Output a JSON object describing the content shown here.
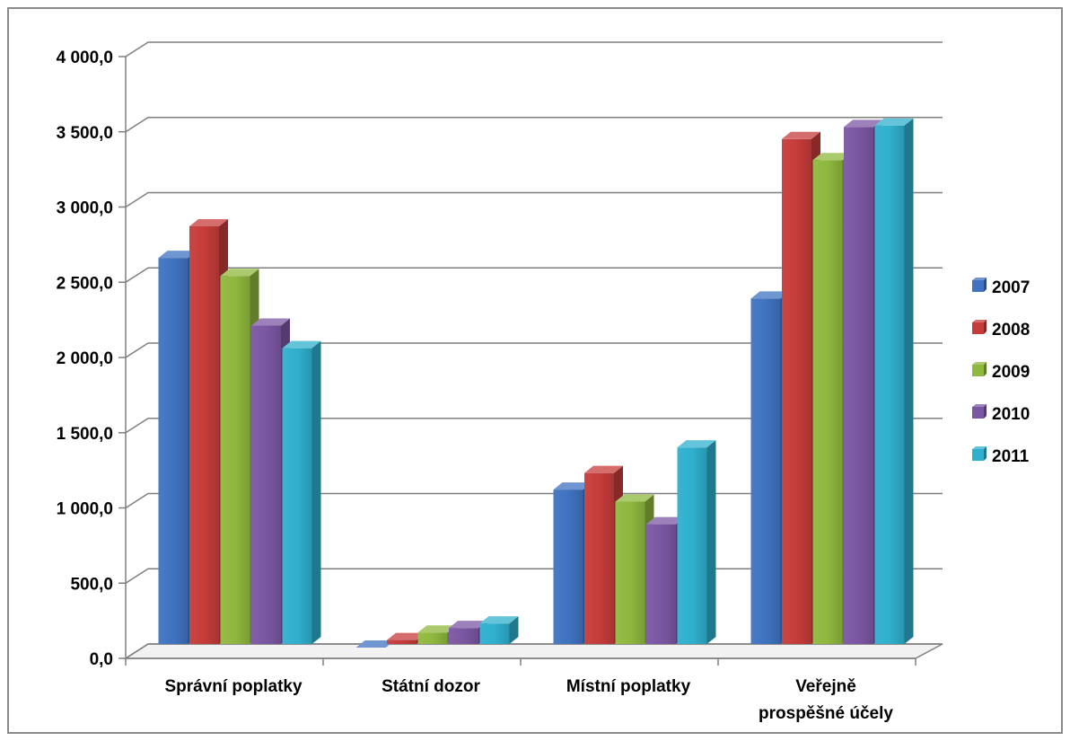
{
  "chart_data": {
    "type": "bar",
    "categories": [
      [
        "Správní poplatky"
      ],
      [
        "Státní dozor"
      ],
      [
        "Místní poplatky"
      ],
      [
        "Veřejně",
        "prospěšné účely"
      ]
    ],
    "series": [
      {
        "name": "2007",
        "color": "#3f73c1",
        "values": [
          2650,
          60,
          1110,
          2380
        ]
      },
      {
        "name": "2008",
        "color": "#c63c3a",
        "values": [
          2860,
          110,
          1220,
          3440
        ]
      },
      {
        "name": "2009",
        "color": "#8fb83e",
        "values": [
          2530,
          160,
          1030,
          3300
        ]
      },
      {
        "name": "2010",
        "color": "#7b57a3",
        "values": [
          2200,
          190,
          880,
          3520
        ]
      },
      {
        "name": "2011",
        "color": "#2fb0ce",
        "values": [
          2050,
          220,
          1390,
          3530
        ]
      }
    ],
    "yticks": [
      "0,0",
      "500,0",
      "1 000,0",
      "1 500,0",
      "2 000,0",
      "2 500,0",
      "3 000,0",
      "3 500,0",
      "4 000,0"
    ],
    "ylim": [
      0,
      4000
    ],
    "grid": true,
    "legend_position": "right",
    "style": "3d-clustered-column"
  }
}
